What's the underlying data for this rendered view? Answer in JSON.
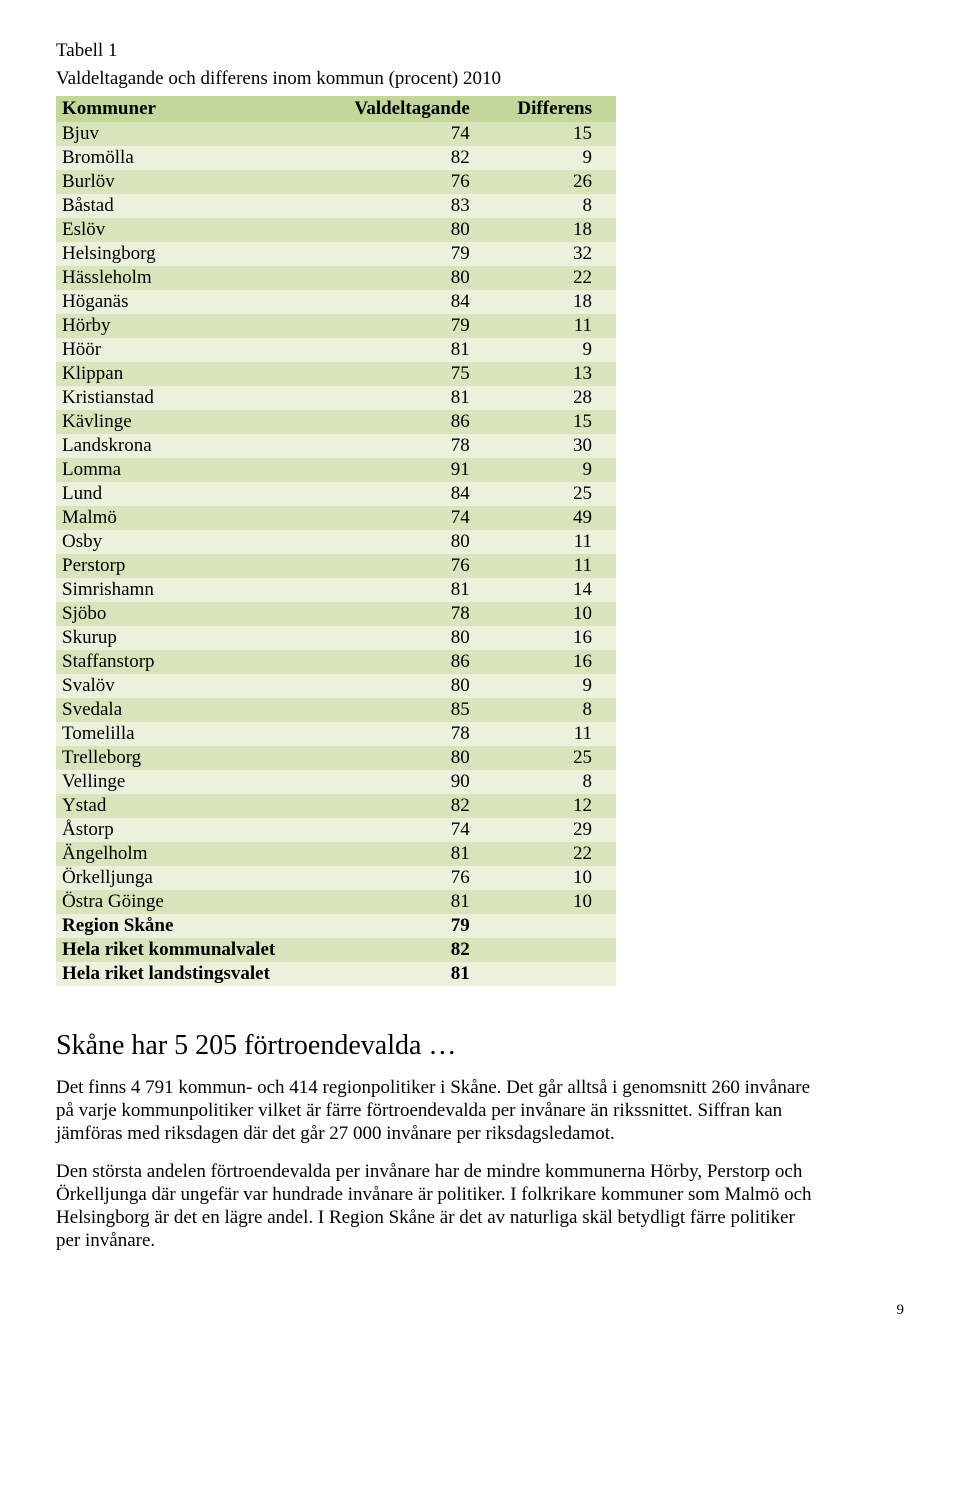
{
  "table_label": "Tabell 1",
  "table_caption": "Valdeltagande och differens inom kommun (procent) 2010",
  "table": {
    "columns": [
      "Kommuner",
      "Valdeltagande",
      "Differens"
    ],
    "header_bg": "#c3d69b",
    "even_bg": "#d7e4bc",
    "odd_bg": "#ebf1dd",
    "col_align": [
      "left",
      "right",
      "right"
    ],
    "rows": [
      {
        "c": [
          "Bjuv",
          "74",
          "15"
        ],
        "bold": false
      },
      {
        "c": [
          "Bromölla",
          "82",
          "9"
        ],
        "bold": false
      },
      {
        "c": [
          "Burlöv",
          "76",
          "26"
        ],
        "bold": false
      },
      {
        "c": [
          "Båstad",
          "83",
          "8"
        ],
        "bold": false
      },
      {
        "c": [
          "Eslöv",
          "80",
          "18"
        ],
        "bold": false
      },
      {
        "c": [
          "Helsingborg",
          "79",
          "32"
        ],
        "bold": false
      },
      {
        "c": [
          "Hässleholm",
          "80",
          "22"
        ],
        "bold": false
      },
      {
        "c": [
          "Höganäs",
          "84",
          "18"
        ],
        "bold": false
      },
      {
        "c": [
          "Hörby",
          "79",
          "11"
        ],
        "bold": false
      },
      {
        "c": [
          "Höör",
          "81",
          "9"
        ],
        "bold": false
      },
      {
        "c": [
          "Klippan",
          "75",
          "13"
        ],
        "bold": false
      },
      {
        "c": [
          "Kristianstad",
          "81",
          "28"
        ],
        "bold": false
      },
      {
        "c": [
          "Kävlinge",
          "86",
          "15"
        ],
        "bold": false
      },
      {
        "c": [
          "Landskrona",
          "78",
          "30"
        ],
        "bold": false
      },
      {
        "c": [
          "Lomma",
          "91",
          "9"
        ],
        "bold": false
      },
      {
        "c": [
          "Lund",
          "84",
          "25"
        ],
        "bold": false
      },
      {
        "c": [
          "Malmö",
          "74",
          "49"
        ],
        "bold": false
      },
      {
        "c": [
          "Osby",
          "80",
          "11"
        ],
        "bold": false
      },
      {
        "c": [
          "Perstorp",
          "76",
          "11"
        ],
        "bold": false
      },
      {
        "c": [
          "Simrishamn",
          "81",
          "14"
        ],
        "bold": false
      },
      {
        "c": [
          "Sjöbo",
          "78",
          "10"
        ],
        "bold": false
      },
      {
        "c": [
          "Skurup",
          "80",
          "16"
        ],
        "bold": false
      },
      {
        "c": [
          "Staffanstorp",
          "86",
          "16"
        ],
        "bold": false
      },
      {
        "c": [
          "Svalöv",
          "80",
          "9"
        ],
        "bold": false
      },
      {
        "c": [
          "Svedala",
          "85",
          "8"
        ],
        "bold": false
      },
      {
        "c": [
          "Tomelilla",
          "78",
          "11"
        ],
        "bold": false
      },
      {
        "c": [
          "Trelleborg",
          "80",
          "25"
        ],
        "bold": false
      },
      {
        "c": [
          "Vellinge",
          "90",
          "8"
        ],
        "bold": false
      },
      {
        "c": [
          "Ystad",
          "82",
          "12"
        ],
        "bold": false
      },
      {
        "c": [
          "Åstorp",
          "74",
          "29"
        ],
        "bold": false
      },
      {
        "c": [
          "Ängelholm",
          "81",
          "22"
        ],
        "bold": false
      },
      {
        "c": [
          "Örkelljunga",
          "76",
          "10"
        ],
        "bold": false
      },
      {
        "c": [
          "Östra Göinge",
          "81",
          "10"
        ],
        "bold": false
      },
      {
        "c": [
          "Region Skåne",
          "79",
          ""
        ],
        "bold": true
      },
      {
        "c": [
          "Hela riket kommunalvalet",
          "82",
          ""
        ],
        "bold": true
      },
      {
        "c": [
          "Hela riket landstingsvalet",
          "81",
          ""
        ],
        "bold": true
      }
    ]
  },
  "section_heading": "Skåne har 5 205 förtroendevalda …",
  "para1": "Det finns 4 791 kommun- och 414 regionpolitiker i Skåne. Det går alltså i genomsnitt 260 invånare på varje kommunpolitiker vilket är färre förtroendevalda per invånare än rikssnittet. Siffran kan jämföras med riksdagen där det går 27 000 invånare per riksdagsledamot.",
  "para2": "Den största andelen förtroendevalda per invånare har de mindre kommunerna Hörby, Perstorp och Örkelljunga där ungefär var hundrade invånare är politiker. I folkrikare kommuner som Malmö och Helsingborg är det en lägre andel. I Region Skåne är det av naturliga skäl betydligt färre politiker per invånare.",
  "page_number": "9"
}
